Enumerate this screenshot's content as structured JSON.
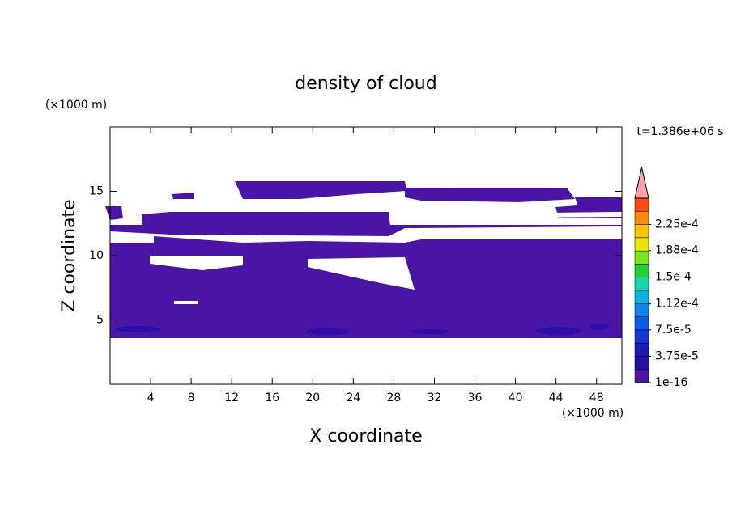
{
  "chart_data": {
    "type": "contour",
    "title": "density of cloud",
    "x_label": "X coordinate",
    "y_label": "Z coordinate",
    "x_unit": "(×1000 m)",
    "y_unit": "(×1000 m)",
    "time_label": "t=1.386e+06 s",
    "xlim": [
      0,
      50.5
    ],
    "xticks": [
      4,
      8,
      12,
      16,
      20,
      24,
      28,
      32,
      36,
      40,
      44,
      48
    ],
    "ylim": [
      0,
      20
    ],
    "yticks": [
      5,
      10,
      15
    ],
    "colorbar": {
      "lim": [
        1e-16,
        0.0002625
      ],
      "colors": [
        "#4a14a6",
        "#2c0fa8",
        "#1a1ab8",
        "#1238d6",
        "#0a5ce8",
        "#0a86f0",
        "#08b4e6",
        "#10d8b0",
        "#1fd630",
        "#78e61a",
        "#e6e600",
        "#ffc000",
        "#ff8c00",
        "#ff4a10"
      ],
      "over_color": "#f5a5a5",
      "ticks": [
        1e-16,
        {
          "value": 3.75e-05,
          "label": "3.75e-5"
        },
        {
          "value": 7.5e-05,
          "label": "7.5e-5"
        },
        {
          "value": 0.000112,
          "label": "1.12e-4"
        },
        {
          "value": 0.00015,
          "label": "1.5e-4"
        },
        {
          "value": 0.000188,
          "label": "1.88e-4"
        },
        {
          "value": 0.000225,
          "label": "2.25e-4"
        }
      ]
    }
  }
}
